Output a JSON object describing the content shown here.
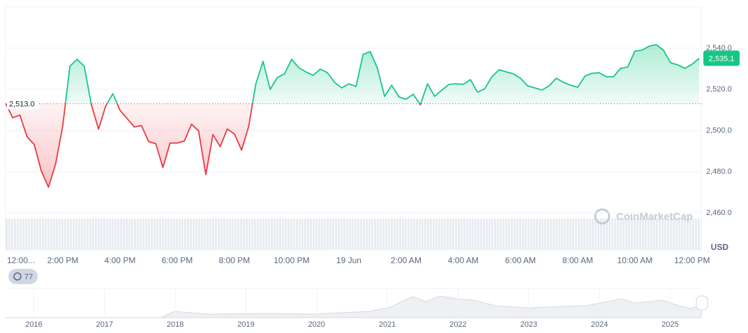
{
  "chart_data": {
    "type": "line",
    "x": [
      12,
      12.25,
      12.5,
      12.75,
      13,
      13.25,
      13.5,
      13.75,
      14,
      14.25,
      14.5,
      14.75,
      15,
      15.25,
      15.5,
      15.75,
      16,
      16.25,
      16.5,
      16.75,
      17,
      17.25,
      17.5,
      17.75,
      18,
      18.25,
      18.5,
      18.75,
      19,
      19.25,
      19.5,
      19.75,
      20,
      20.25,
      20.5,
      20.75,
      21,
      21.25,
      21.5,
      21.75,
      22,
      22.25,
      22.5,
      22.75,
      23,
      23.25,
      23.5,
      23.75,
      24,
      24.25,
      24.5,
      24.75,
      25,
      25.25,
      25.5,
      25.75,
      26,
      26.25,
      26.5,
      26.75,
      27,
      27.25,
      27.5,
      27.75,
      28,
      28.25,
      28.5,
      28.75,
      29,
      29.25,
      29.5,
      29.75,
      30,
      30.25,
      30.5,
      30.75,
      31,
      31.25,
      31.5,
      31.75,
      32,
      32.25,
      32.5,
      32.75,
      33,
      33.25,
      33.5,
      33.75,
      34,
      34.25,
      34.5,
      34.75,
      35,
      35.25,
      35.5,
      35.75,
      36,
      36.25
    ],
    "values": [
      2513.2,
      2506.2,
      2507.5,
      2497.0,
      2493.2,
      2480.3,
      2472.5,
      2483.7,
      2502.4,
      2531.2,
      2534.6,
      2531.2,
      2512.5,
      2500.7,
      2511.9,
      2517.9,
      2509.8,
      2505.8,
      2501.7,
      2502.4,
      2494.6,
      2493.6,
      2482.0,
      2493.9,
      2493.9,
      2494.9,
      2503.1,
      2499.7,
      2478.6,
      2498.0,
      2492.2,
      2500.7,
      2498.3,
      2490.5,
      2502.1,
      2522.7,
      2533.6,
      2520.0,
      2525.8,
      2527.5,
      2534.6,
      2530.5,
      2528.5,
      2526.8,
      2529.8,
      2528.1,
      2523.4,
      2520.7,
      2522.7,
      2521.4,
      2537.0,
      2538.3,
      2530.2,
      2516.6,
      2522.0,
      2516.3,
      2515.2,
      2517.6,
      2512.5,
      2522.7,
      2516.6,
      2519.7,
      2522.4,
      2522.7,
      2522.4,
      2524.7,
      2518.6,
      2520.3,
      2526.1,
      2529.5,
      2528.5,
      2527.5,
      2525.4,
      2521.7,
      2520.7,
      2519.7,
      2521.7,
      2525.4,
      2523.4,
      2522.0,
      2521.0,
      2526.4,
      2527.8,
      2528.1,
      2526.1,
      2526.1,
      2530.2,
      2530.8,
      2538.6,
      2539.0,
      2541.0,
      2541.7,
      2539.0,
      2532.9,
      2531.9,
      2530.2,
      2532.2,
      2535.1
    ],
    "colors": {
      "up": "#16c784",
      "down": "#ea3943"
    },
    "baseline": {
      "value": 2513.0,
      "label": "2,513.0"
    },
    "current_price": {
      "value": 2535.1,
      "label": "2,535.1"
    },
    "xlim": [
      12,
      36.32
    ],
    "xticks": [
      {
        "value": 12,
        "label": "12:00..."
      },
      {
        "value": 14,
        "label": "2:00 PM"
      },
      {
        "value": 16,
        "label": "4:00 PM"
      },
      {
        "value": 18,
        "label": "6:00 PM"
      },
      {
        "value": 20,
        "label": "8:00 PM"
      },
      {
        "value": 22,
        "label": "10:00 PM"
      },
      {
        "value": 24,
        "label": "19 Jun"
      },
      {
        "value": 26,
        "label": "2:00 AM"
      },
      {
        "value": 28,
        "label": "4:00 AM"
      },
      {
        "value": 30,
        "label": "6:00 AM"
      },
      {
        "value": 32,
        "label": "8:00 AM"
      },
      {
        "value": 34,
        "label": "10:00 AM"
      },
      {
        "value": 36,
        "label": "12:00 PM"
      }
    ],
    "ylim": [
      2442,
      2560
    ],
    "yticks": [
      {
        "value": 2460,
        "label": "2,460.0"
      },
      {
        "value": 2480,
        "label": "2,480.0"
      },
      {
        "value": 2500,
        "label": "2,500.0"
      },
      {
        "value": 2520,
        "label": "2,520.0"
      },
      {
        "value": 2540,
        "label": "2,540.0"
      }
    ],
    "y_axis_label": "USD",
    "grid": true,
    "watermark": "CoinMarketCap",
    "history_badge": "77",
    "navigator": {
      "xlim": [
        2015.6,
        2025.44
      ],
      "xticks": [
        2016,
        2017,
        2018,
        2019,
        2020,
        2021,
        2022,
        2023,
        2024,
        2025
      ]
    }
  }
}
